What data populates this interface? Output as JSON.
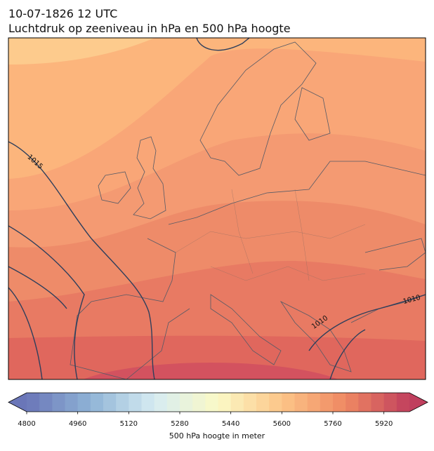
{
  "title": "10-07-1826 12 UTC",
  "subtitle": "Luchtdruk op zeeniveau in hPa en 500 hPa hoogte",
  "contour_labels": [
    "1015",
    "1010",
    "1010"
  ],
  "colorbar": {
    "label": "500 hPa hoogte in meter",
    "lim": [
      4800,
      6000
    ],
    "step": 40,
    "ticks": [
      4800,
      4960,
      5120,
      5280,
      5440,
      5600,
      5760,
      5920
    ],
    "extend": "both",
    "colors": [
      "#6a76b8",
      "#8fb3d6",
      "#d6ecf2",
      "#fbf9c6",
      "#fcc588",
      "#ef8862",
      "#c03f5e"
    ]
  }
}
